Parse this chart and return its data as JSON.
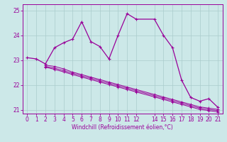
{
  "xlabel": "Windchill (Refroidissement éolien,°C)",
  "bg_color": "#cce8e8",
  "line_color": "#990099",
  "grid_color": "#aacccc",
  "xlim": [
    -0.5,
    21.5
  ],
  "ylim": [
    20.85,
    25.25
  ],
  "yticks": [
    21,
    22,
    23,
    24,
    25
  ],
  "xticks": [
    0,
    1,
    2,
    3,
    4,
    5,
    6,
    7,
    8,
    9,
    10,
    11,
    12,
    14,
    15,
    16,
    17,
    18,
    19,
    20,
    21
  ],
  "main_x": [
    0,
    1,
    2,
    3,
    4,
    5,
    6,
    7,
    8,
    9,
    10,
    11,
    12,
    14,
    15,
    16,
    17,
    18,
    19,
    20,
    21
  ],
  "main_y": [
    23.1,
    23.05,
    22.85,
    23.5,
    23.7,
    23.85,
    24.55,
    23.75,
    23.55,
    23.05,
    24.0,
    24.87,
    24.65,
    24.65,
    24.0,
    23.5,
    22.2,
    21.5,
    21.35,
    21.45,
    21.1
  ],
  "s1_x": [
    2,
    3,
    4,
    5,
    6,
    7,
    8,
    9,
    10,
    11,
    12,
    14,
    15,
    16,
    17,
    18,
    19,
    20,
    21
  ],
  "s1_y": [
    22.8,
    22.75,
    22.65,
    22.52,
    22.42,
    22.32,
    22.22,
    22.12,
    22.02,
    21.92,
    21.82,
    21.62,
    21.52,
    21.42,
    21.32,
    21.22,
    21.12,
    21.07,
    21.02
  ],
  "s2_x": [
    2,
    3,
    4,
    5,
    6,
    7,
    8,
    9,
    10,
    11,
    12,
    14,
    15,
    16,
    17,
    18,
    19,
    20,
    21
  ],
  "s2_y": [
    22.75,
    22.68,
    22.58,
    22.47,
    22.37,
    22.27,
    22.17,
    22.07,
    21.97,
    21.87,
    21.77,
    21.57,
    21.47,
    21.37,
    21.27,
    21.17,
    21.07,
    21.02,
    20.97
  ],
  "s3_x": [
    2,
    3,
    4,
    5,
    6,
    7,
    8,
    9,
    10,
    11,
    12,
    14,
    15,
    16,
    17,
    18,
    19,
    20,
    21
  ],
  "s3_y": [
    22.72,
    22.63,
    22.53,
    22.42,
    22.32,
    22.22,
    22.12,
    22.02,
    21.92,
    21.82,
    21.72,
    21.52,
    21.42,
    21.32,
    21.22,
    21.12,
    21.02,
    20.97,
    20.92
  ]
}
